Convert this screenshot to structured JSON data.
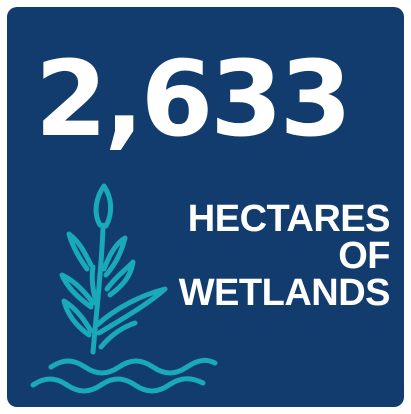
{
  "stat": {
    "value": "2,633",
    "caption_lines": [
      "HECTARES",
      "OF",
      "WETLANDS"
    ]
  },
  "colors": {
    "background": "#123c6e",
    "text": "#ffffff",
    "accent": "#19a9b8"
  },
  "icons": {
    "illustration": "wetland-reed-icon"
  }
}
